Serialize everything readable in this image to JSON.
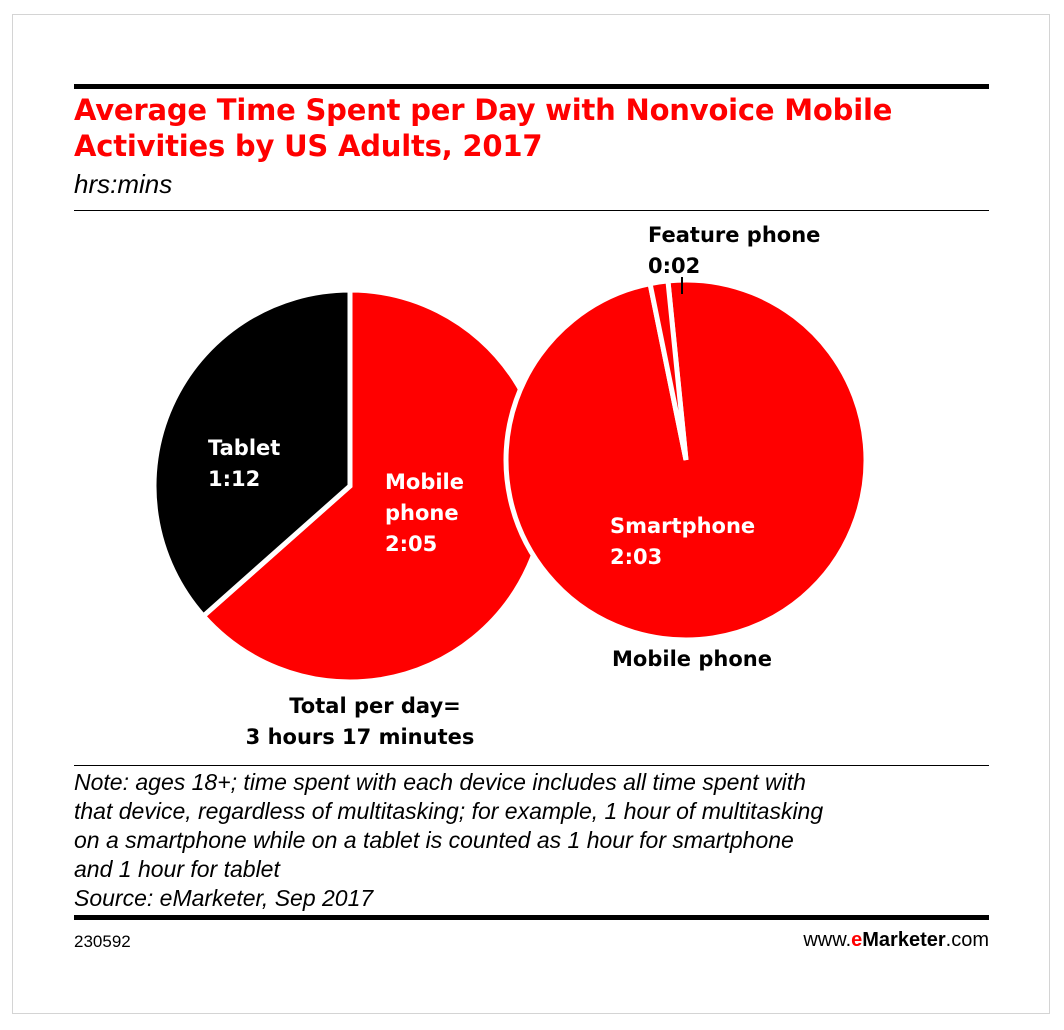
{
  "title": "Average Time Spent per Day with Nonvoice Mobile Activities by US Adults, 2017",
  "subtitle": "hrs:mins",
  "chart_data": [
    {
      "type": "pie",
      "slices": [
        {
          "label": "Tablet",
          "value_label": "1:12",
          "minutes": 72,
          "color": "#000000"
        },
        {
          "label": "Mobile phone",
          "value_label": "2:05",
          "minutes": 125,
          "color": "#ff0000"
        }
      ],
      "total_label_line1": "Total per day=",
      "total_label_line2": "3 hours 17 minutes"
    },
    {
      "type": "pie",
      "caption": "Mobile phone",
      "slices": [
        {
          "label": "Smartphone",
          "value_label": "2:03",
          "minutes": 123,
          "color": "#ff0000"
        },
        {
          "label": "Feature phone",
          "value_label": "0:02",
          "minutes": 2,
          "color": "#ff0000"
        }
      ]
    }
  ],
  "note_lines": [
    "Note: ages 18+; time spent with each device includes all time spent with",
    "that device, regardless of multitasking; for example, 1 hour of multitasking",
    "on a smartphone while on a tablet is counted as 1 hour for smartphone",
    "and 1 hour for tablet",
    "Source: eMarketer, Sep 2017"
  ],
  "footer": {
    "chart_id": "230592",
    "brand_prefix": "www.",
    "brand_e": "e",
    "brand_marketer": "Marketer",
    "brand_suffix": ".com"
  }
}
